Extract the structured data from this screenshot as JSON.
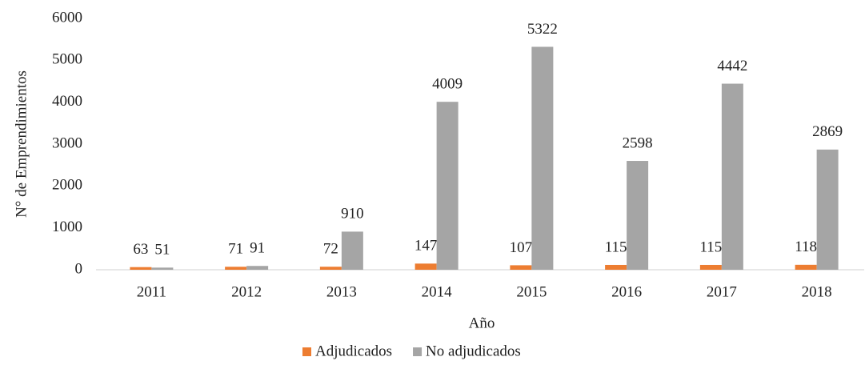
{
  "chart_data": {
    "type": "bar",
    "x_label": "Año",
    "y_label": "N° de Emprendimientos",
    "categories": [
      "2011",
      "2012",
      "2013",
      "2014",
      "2015",
      "2016",
      "2017",
      "2018"
    ],
    "series": [
      {
        "name": "Adjudicados",
        "color": "#ed7d31",
        "values": [
          63,
          71,
          72,
          147,
          107,
          115,
          115,
          118
        ]
      },
      {
        "name": "No adjudicados",
        "color": "#a5a5a5",
        "values": [
          51,
          91,
          910,
          4009,
          5322,
          2598,
          4442,
          2869
        ]
      }
    ],
    "ylim": [
      0,
      6000
    ],
    "yticks": [
      0,
      1000,
      2000,
      3000,
      4000,
      5000,
      6000
    ],
    "legend": "bottom"
  }
}
